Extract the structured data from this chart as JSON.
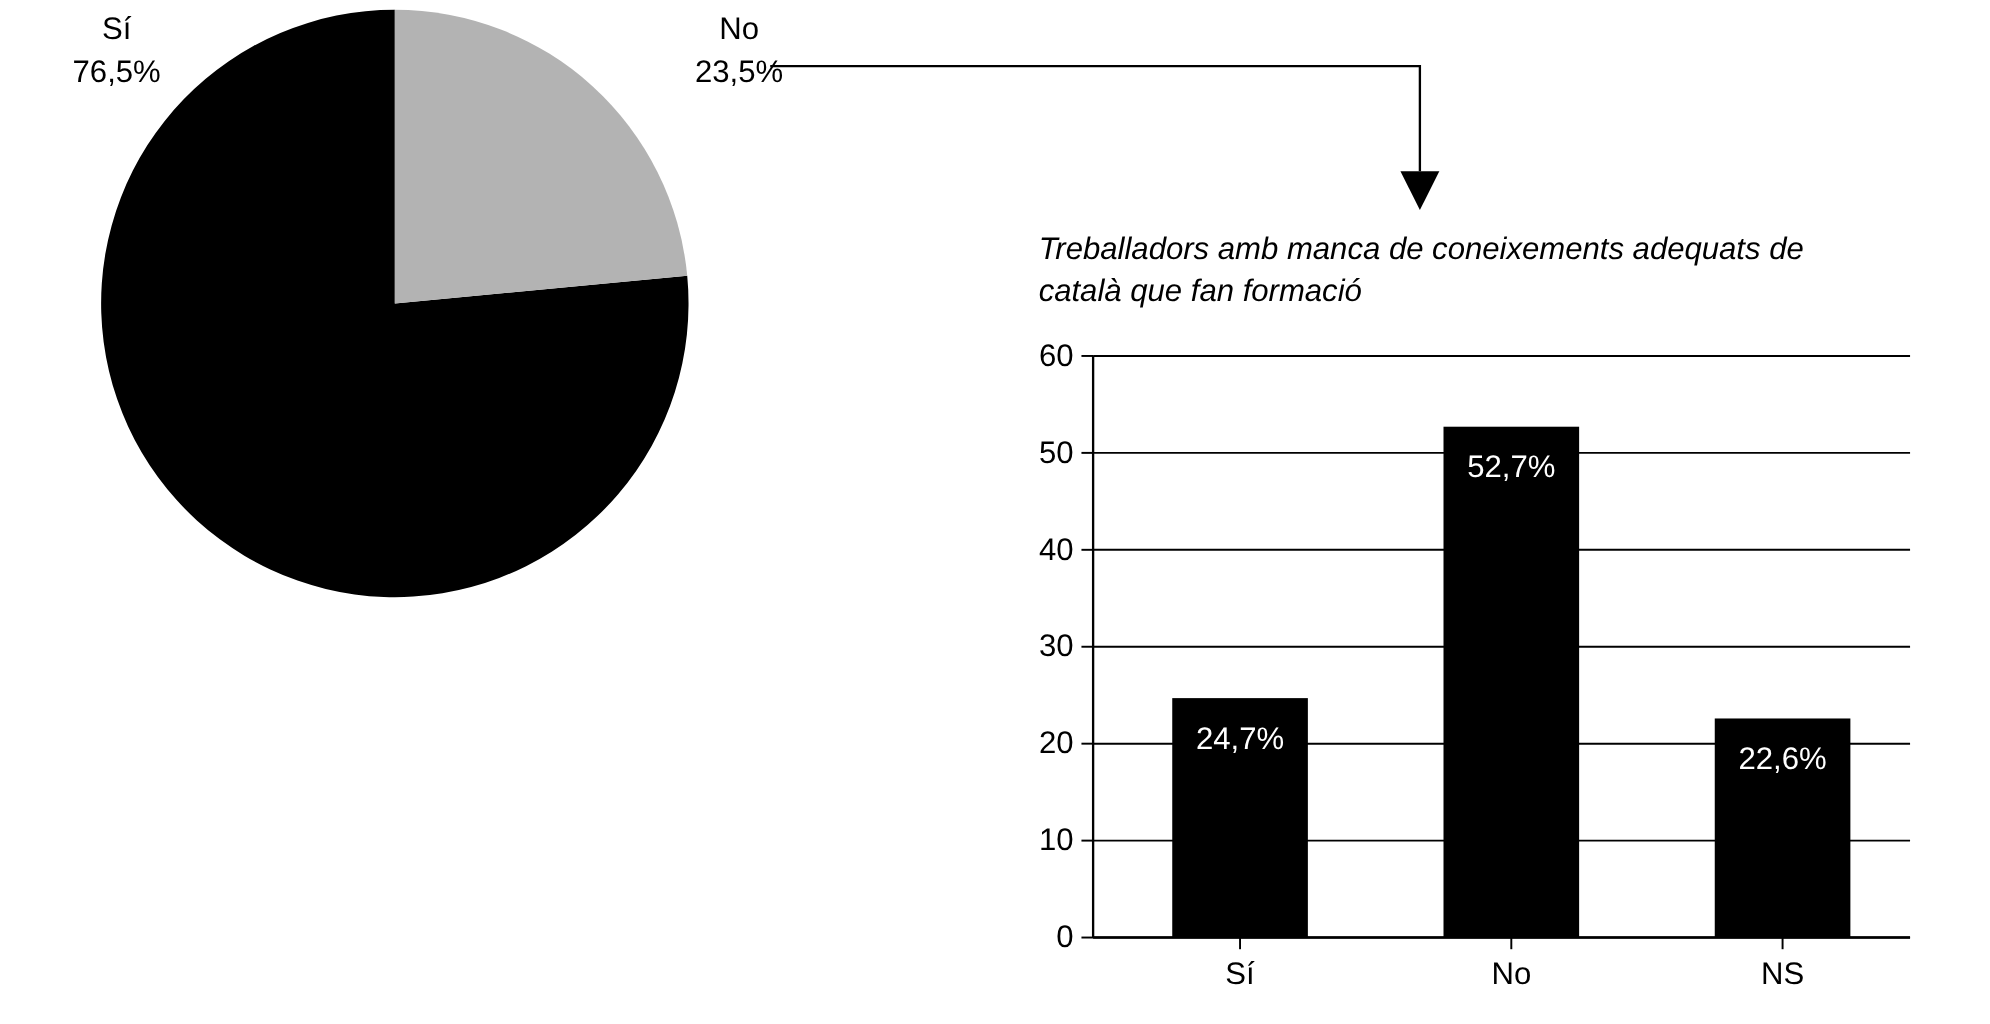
{
  "chart_data": [
    {
      "type": "pie",
      "categories": [
        "Sí",
        "No"
      ],
      "values": [
        76.5,
        23.5
      ],
      "colors": [
        "#000000",
        "#b3b3b3"
      ],
      "value_labels": [
        "76,5%",
        "23,5%"
      ]
    },
    {
      "type": "bar",
      "title": "Treballadors amb manca de coneixements adequats de català que fan formació",
      "categories": [
        "Sí",
        "No",
        "NS"
      ],
      "values": [
        24.7,
        52.7,
        22.6
      ],
      "color": "#000000",
      "value_labels": [
        "24,7%",
        "52,7%",
        "22,6%"
      ],
      "ylim": [
        0,
        60
      ],
      "yticks": [
        0,
        10,
        20,
        30,
        40,
        50,
        60
      ],
      "grid": "y"
    }
  ]
}
